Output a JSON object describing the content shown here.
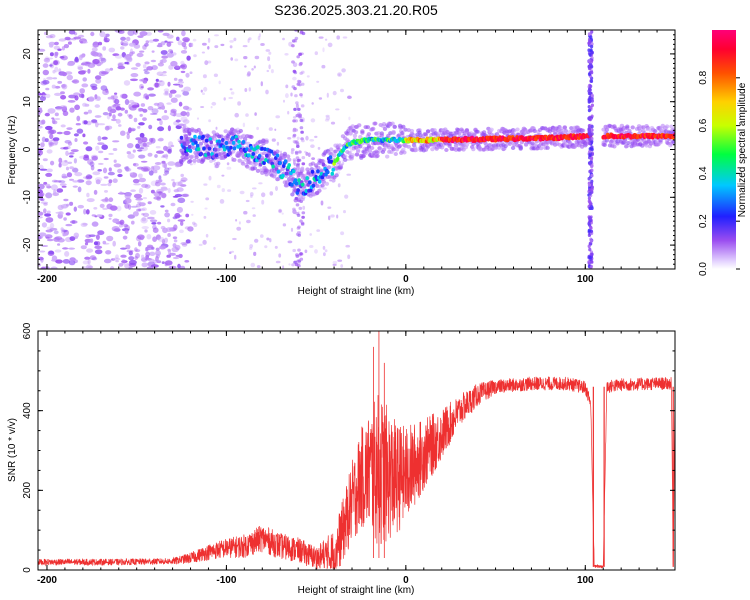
{
  "title": "S236.2025.303.21.20.R05",
  "chart_data": [
    {
      "type": "heatmap",
      "name": "spectrogram",
      "xlabel": "Height of straight line (km)",
      "ylabel": "Frequency (Hz)",
      "xlim": [
        -205,
        150
      ],
      "ylim": [
        -25,
        25
      ],
      "xticks": [
        -200,
        -100,
        0,
        100
      ],
      "yticks": [
        -20,
        -10,
        0,
        10,
        20
      ],
      "ridge": [
        {
          "x": -125,
          "y": 0.5
        },
        {
          "x": -115,
          "y": 1
        },
        {
          "x": -105,
          "y": 0
        },
        {
          "x": -95,
          "y": 1
        },
        {
          "x": -85,
          "y": -1
        },
        {
          "x": -75,
          "y": -2
        },
        {
          "x": -65,
          "y": -5
        },
        {
          "x": -60,
          "y": -8
        },
        {
          "x": -50,
          "y": -6
        },
        {
          "x": -45,
          "y": -4
        },
        {
          "x": -40,
          "y": -3
        },
        {
          "x": -35,
          "y": 0
        },
        {
          "x": -30,
          "y": 1.5
        },
        {
          "x": -20,
          "y": 2
        },
        {
          "x": -10,
          "y": 2
        },
        {
          "x": 0,
          "y": 2
        },
        {
          "x": 20,
          "y": 2
        },
        {
          "x": 50,
          "y": 2.2
        },
        {
          "x": 80,
          "y": 2.4
        },
        {
          "x": 100,
          "y": 2.8
        },
        {
          "x": 120,
          "y": 2.8
        },
        {
          "x": 150,
          "y": 2.8
        }
      ],
      "gap_x": [
        103,
        110
      ],
      "colorbar": {
        "label": "Normalized spectral amplitude",
        "range": [
          0.0,
          1.0
        ],
        "ticks": [
          "0.0",
          "0.2",
          "0.4",
          "0.6",
          "0.8"
        ],
        "tick_values": [
          0.0,
          0.2,
          0.4,
          0.6,
          0.8
        ]
      }
    },
    {
      "type": "line",
      "name": "snr",
      "xlabel": "Height of straight line (km)",
      "ylabel": "SNR (10 * v/v)",
      "xlim": [
        -205,
        150
      ],
      "ylim": [
        0,
        600
      ],
      "xticks": [
        -200,
        -100,
        0,
        100
      ],
      "yticks": [
        0,
        200,
        400,
        600
      ],
      "color": "#ee3030",
      "envelope": [
        {
          "x": -205,
          "y": 20
        },
        {
          "x": -160,
          "y": 20
        },
        {
          "x": -130,
          "y": 22
        },
        {
          "x": -120,
          "y": 30
        },
        {
          "x": -110,
          "y": 45
        },
        {
          "x": -100,
          "y": 55
        },
        {
          "x": -90,
          "y": 60
        },
        {
          "x": -80,
          "y": 80
        },
        {
          "x": -70,
          "y": 60
        },
        {
          "x": -60,
          "y": 50
        },
        {
          "x": -50,
          "y": 30
        },
        {
          "x": -40,
          "y": 40
        },
        {
          "x": -35,
          "y": 100
        },
        {
          "x": -30,
          "y": 170
        },
        {
          "x": -25,
          "y": 230
        },
        {
          "x": -20,
          "y": 250
        },
        {
          "x": -15,
          "y": 250
        },
        {
          "x": -10,
          "y": 240
        },
        {
          "x": -5,
          "y": 230
        },
        {
          "x": 0,
          "y": 240
        },
        {
          "x": 10,
          "y": 290
        },
        {
          "x": 20,
          "y": 340
        },
        {
          "x": 30,
          "y": 400
        },
        {
          "x": 40,
          "y": 440
        },
        {
          "x": 50,
          "y": 460
        },
        {
          "x": 70,
          "y": 468
        },
        {
          "x": 90,
          "y": 468
        },
        {
          "x": 100,
          "y": 458
        },
        {
          "x": 103,
          "y": 420
        },
        {
          "x": 105,
          "y": 10
        },
        {
          "x": 110,
          "y": 10
        },
        {
          "x": 112,
          "y": 460
        },
        {
          "x": 120,
          "y": 465
        },
        {
          "x": 140,
          "y": 468
        },
        {
          "x": 148,
          "y": 468
        },
        {
          "x": 149,
          "y": 10
        },
        {
          "x": 150,
          "y": 468
        }
      ],
      "noise_amplitude": [
        {
          "x": -205,
          "y": 8
        },
        {
          "x": -130,
          "y": 8
        },
        {
          "x": -110,
          "y": 20
        },
        {
          "x": -80,
          "y": 35
        },
        {
          "x": -50,
          "y": 30
        },
        {
          "x": -35,
          "y": 80
        },
        {
          "x": -20,
          "y": 150
        },
        {
          "x": -15,
          "y": 200
        },
        {
          "x": -5,
          "y": 140
        },
        {
          "x": 10,
          "y": 90
        },
        {
          "x": 30,
          "y": 40
        },
        {
          "x": 50,
          "y": 18
        },
        {
          "x": 150,
          "y": 16
        }
      ],
      "peaks": [
        {
          "x": -15,
          "y": 600
        },
        {
          "x": -18,
          "y": 560
        },
        {
          "x": -12,
          "y": 520
        }
      ]
    }
  ]
}
